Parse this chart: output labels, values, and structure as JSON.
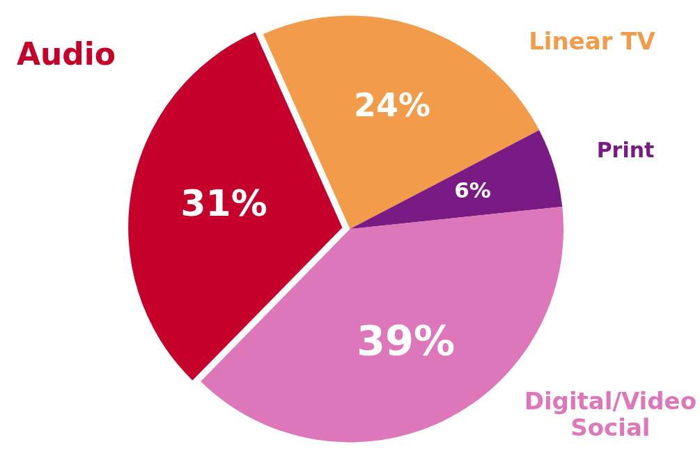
{
  "chart_data": {
    "type": "pie",
    "categories": [
      "Linear TV",
      "Print",
      "Digital/Video Social",
      "Audio"
    ],
    "values": [
      24,
      6,
      39,
      31
    ],
    "colors": [
      "#f29b4b",
      "#7a1b85",
      "#dd77b9",
      "#c4002b"
    ],
    "value_labels": [
      "24%",
      "6%",
      "39%",
      "31%"
    ],
    "legend": false
  }
}
